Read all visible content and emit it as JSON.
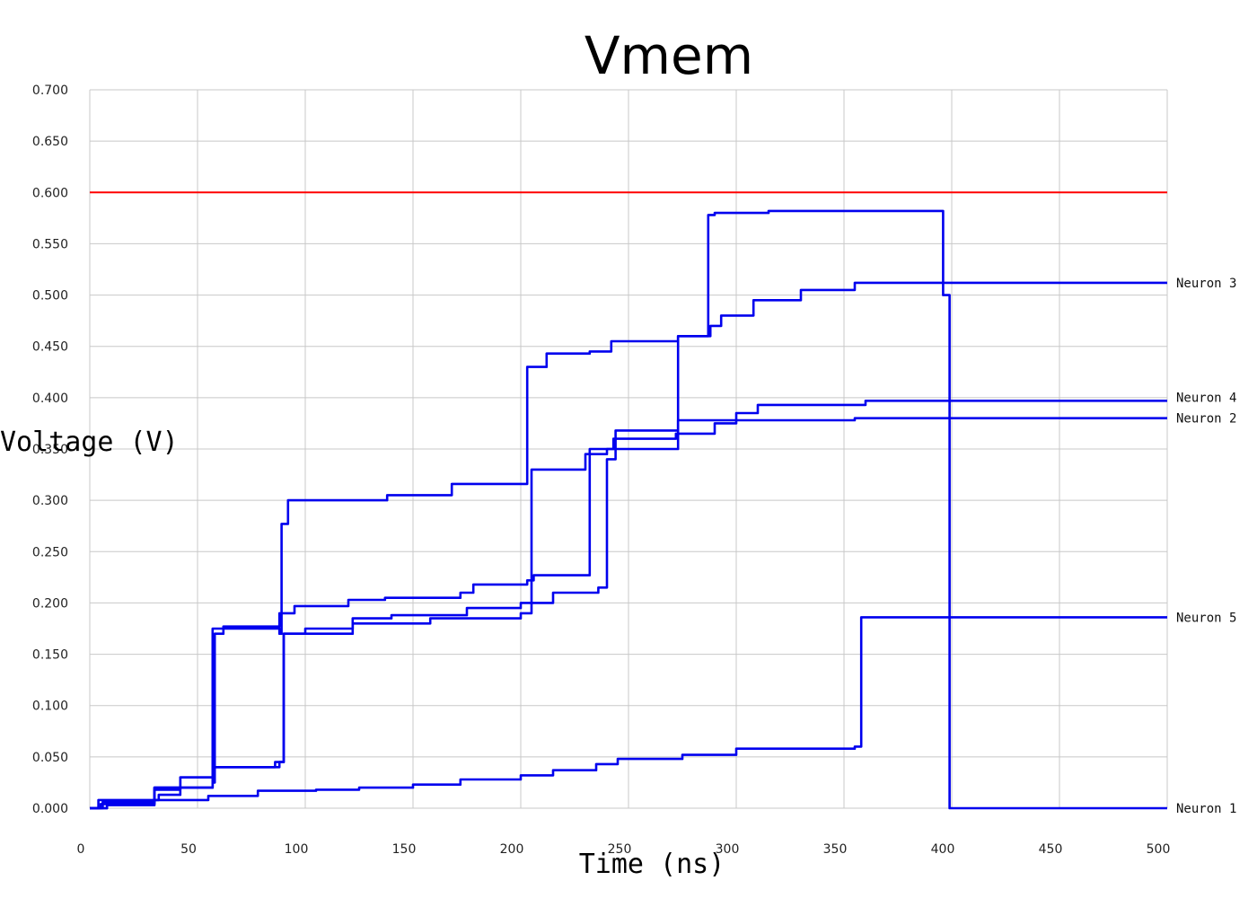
{
  "chart_data": {
    "type": "line",
    "title": "Vmem",
    "xlabel": "Time (ns)",
    "ylabel": "Voltage (V)",
    "xlim": [
      0,
      500
    ],
    "ylim": [
      0,
      0.7
    ],
    "x_ticks": [
      "0",
      "50",
      "100",
      "150",
      "200",
      "250",
      "300",
      "350",
      "400",
      "450",
      "500"
    ],
    "y_ticks": [
      "0.000",
      "0.050",
      "0.100",
      "0.150",
      "0.200",
      "0.250",
      "0.300",
      "0.350",
      "0.400",
      "0.450",
      "0.500",
      "0.550",
      "0.600",
      "0.650",
      "0.700"
    ],
    "grid": true,
    "legend_placement": "right (labels at line ends)",
    "threshold": {
      "y": 0.6,
      "color": "#ff0000"
    },
    "series_color": "#0000ee",
    "series": [
      {
        "name": "Neuron 1",
        "x": [
          0,
          4,
          4,
          32,
          32,
          42,
          42,
          57,
          57,
          88,
          88,
          89,
          89,
          92,
          92,
          110,
          110,
          138,
          138,
          168,
          168,
          200,
          200,
          203,
          203,
          212,
          212,
          232,
          232,
          242,
          242,
          273,
          273,
          287,
          287,
          290,
          290,
          315,
          315,
          340,
          340,
          396,
          396,
          399,
          399,
          500
        ],
        "y": [
          0,
          0,
          0.008,
          0.008,
          0.013,
          0.013,
          0.03,
          0.03,
          0.175,
          0.175,
          0.17,
          0.17,
          0.277,
          0.277,
          0.3,
          0.3,
          0.3,
          0.3,
          0.305,
          0.305,
          0.316,
          0.316,
          0.316,
          0.316,
          0.43,
          0.43,
          0.443,
          0.443,
          0.445,
          0.445,
          0.455,
          0.455,
          0.46,
          0.46,
          0.578,
          0.578,
          0.58,
          0.58,
          0.582,
          0.582,
          0.582,
          0.582,
          0.5,
          0.5,
          0,
          0
        ]
      },
      {
        "name": "Neuron 2",
        "x": [
          0,
          8,
          8,
          30,
          30,
          57,
          57,
          88,
          88,
          90,
          90,
          122,
          122,
          158,
          158,
          200,
          200,
          205,
          205,
          230,
          230,
          240,
          240,
          243,
          243,
          272,
          272,
          290,
          290,
          300,
          300,
          355,
          355,
          500
        ],
        "y": [
          0,
          0,
          0.005,
          0.005,
          0.02,
          0.02,
          0.04,
          0.04,
          0.045,
          0.045,
          0.17,
          0.17,
          0.18,
          0.18,
          0.185,
          0.185,
          0.19,
          0.19,
          0.33,
          0.33,
          0.345,
          0.345,
          0.35,
          0.35,
          0.36,
          0.36,
          0.365,
          0.365,
          0.375,
          0.375,
          0.378,
          0.378,
          0.38,
          0.38
        ]
      },
      {
        "name": "Neuron 3",
        "x": [
          0,
          6,
          6,
          30,
          30,
          57,
          57,
          58,
          58,
          62,
          62,
          88,
          88,
          95,
          95,
          120,
          120,
          137,
          137,
          172,
          172,
          178,
          178,
          203,
          203,
          206,
          206,
          232,
          232,
          273,
          273,
          288,
          288,
          293,
          293,
          308,
          308,
          330,
          330,
          355,
          355,
          500
        ],
        "y": [
          0,
          0,
          0.006,
          0.006,
          0.02,
          0.02,
          0.025,
          0.025,
          0.17,
          0.17,
          0.177,
          0.177,
          0.19,
          0.19,
          0.197,
          0.197,
          0.203,
          0.203,
          0.205,
          0.205,
          0.21,
          0.21,
          0.218,
          0.218,
          0.222,
          0.222,
          0.227,
          0.227,
          0.35,
          0.35,
          0.46,
          0.46,
          0.47,
          0.47,
          0.48,
          0.48,
          0.495,
          0.495,
          0.505,
          0.505,
          0.512,
          0.512
        ]
      },
      {
        "name": "Neuron 4",
        "x": [
          0,
          5,
          5,
          30,
          30,
          42,
          42,
          57,
          57,
          86,
          86,
          90,
          90,
          100,
          100,
          122,
          122,
          140,
          140,
          175,
          175,
          200,
          200,
          215,
          215,
          236,
          236,
          240,
          240,
          244,
          244,
          273,
          273,
          300,
          300,
          310,
          310,
          360,
          360,
          500
        ],
        "y": [
          0,
          0,
          0.004,
          0.004,
          0.018,
          0.018,
          0.03,
          0.03,
          0.04,
          0.04,
          0.045,
          0.045,
          0.17,
          0.17,
          0.175,
          0.175,
          0.185,
          0.185,
          0.188,
          0.188,
          0.195,
          0.195,
          0.2,
          0.2,
          0.21,
          0.21,
          0.215,
          0.215,
          0.34,
          0.34,
          0.368,
          0.368,
          0.378,
          0.378,
          0.385,
          0.385,
          0.393,
          0.393,
          0.397,
          0.397
        ]
      },
      {
        "name": "Neuron 5",
        "x": [
          0,
          8,
          8,
          30,
          30,
          55,
          55,
          78,
          78,
          105,
          105,
          125,
          125,
          150,
          150,
          172,
          172,
          200,
          200,
          215,
          215,
          235,
          235,
          245,
          245,
          275,
          275,
          300,
          300,
          355,
          355,
          358,
          358,
          500
        ],
        "y": [
          0,
          0,
          0.003,
          0.003,
          0.008,
          0.008,
          0.012,
          0.012,
          0.017,
          0.017,
          0.018,
          0.018,
          0.02,
          0.02,
          0.023,
          0.023,
          0.028,
          0.028,
          0.032,
          0.032,
          0.037,
          0.037,
          0.043,
          0.043,
          0.048,
          0.048,
          0.052,
          0.052,
          0.058,
          0.058,
          0.06,
          0.06,
          0.186,
          0.186
        ]
      }
    ]
  }
}
